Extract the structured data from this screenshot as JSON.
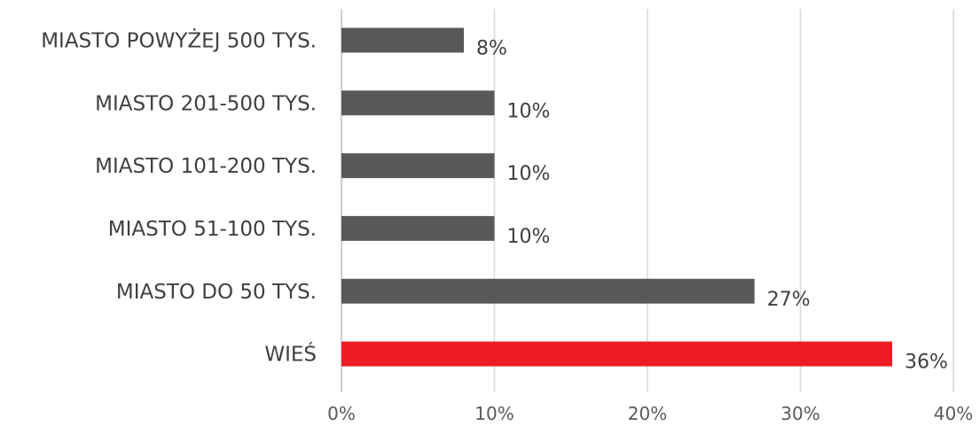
{
  "chart_data": {
    "type": "bar",
    "orientation": "horizontal",
    "categories": [
      "MIASTO POWYŻEJ 500 TYS.",
      "MIASTO 201-500 TYS.",
      "MIASTO 101-200 TYS.",
      "MIASTO 51-100 TYS.",
      "MIASTO DO 50 TYS.",
      "WIEŚ"
    ],
    "values": [
      8,
      10,
      10,
      10,
      27,
      36
    ],
    "value_labels": [
      "8%",
      "10%",
      "10%",
      "10%",
      "27%",
      "36%"
    ],
    "xlim": [
      0,
      40
    ],
    "xticks": [
      0,
      10,
      20,
      30,
      40
    ],
    "xtick_labels": [
      "0%",
      "10%",
      "20%",
      "30%",
      "40%"
    ],
    "grid": "vertical",
    "legend": "none",
    "colors": {
      "default_bar": "#595959",
      "highlight_bar": "#ed1c24",
      "highlight_category": "WIEŚ"
    }
  }
}
